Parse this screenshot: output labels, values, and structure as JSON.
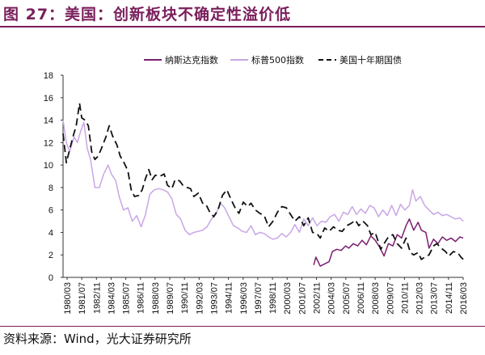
{
  "figure": {
    "title": "图 27：美国：创新板块不确定性溢价低",
    "source": "资料来源：Wind，光大证券研究所"
  },
  "chart_data": {
    "type": "line",
    "x_tick_labels": [
      "1980/03",
      "1981/07",
      "1982/11",
      "1984/03",
      "1985/07",
      "1986/11",
      "1988/03",
      "1989/07",
      "1990/11",
      "1992/03",
      "1993/07",
      "1994/11",
      "1996/03",
      "1997/07",
      "1998/11",
      "2000/03",
      "2001/07",
      "2002/11",
      "2004/03",
      "2005/07",
      "2006/11",
      "2008/03",
      "2009/07",
      "2010/11",
      "2012/03",
      "2013/07",
      "2014/11",
      "2016/03"
    ],
    "ylim": [
      0,
      18
    ],
    "yticks": [
      0,
      2,
      4,
      6,
      8,
      10,
      12,
      14,
      16,
      18
    ],
    "legend_position": "top",
    "grid": false,
    "series": [
      {
        "name": "纳斯达克指数",
        "color": "#7a1f6e",
        "style": "solid",
        "points": [
          [
            2002.8,
            1.1
          ],
          [
            2003.0,
            1.8
          ],
          [
            2003.4,
            1.0
          ],
          [
            2003.8,
            1.2
          ],
          [
            2004.2,
            1.4
          ],
          [
            2004.5,
            2.3
          ],
          [
            2004.9,
            2.5
          ],
          [
            2005.3,
            2.4
          ],
          [
            2005.7,
            2.8
          ],
          [
            2006.0,
            2.6
          ],
          [
            2006.4,
            3.0
          ],
          [
            2006.8,
            2.8
          ],
          [
            2007.2,
            3.3
          ],
          [
            2007.6,
            2.9
          ],
          [
            2008.0,
            3.7
          ],
          [
            2008.4,
            3.3
          ],
          [
            2008.8,
            2.7
          ],
          [
            2009.2,
            1.9
          ],
          [
            2009.6,
            3.0
          ],
          [
            2010.0,
            2.8
          ],
          [
            2010.4,
            3.8
          ],
          [
            2010.8,
            3.5
          ],
          [
            2011.2,
            4.6
          ],
          [
            2011.5,
            5.2
          ],
          [
            2011.9,
            4.2
          ],
          [
            2012.3,
            4.9
          ],
          [
            2012.6,
            4.2
          ],
          [
            2013.0,
            4.0
          ],
          [
            2013.3,
            2.6
          ],
          [
            2013.7,
            3.4
          ],
          [
            2014.1,
            3.0
          ],
          [
            2014.5,
            3.6
          ],
          [
            2014.9,
            3.3
          ],
          [
            2015.3,
            3.5
          ],
          [
            2015.7,
            3.2
          ],
          [
            2016.1,
            3.6
          ],
          [
            2016.4,
            3.5
          ]
        ]
      },
      {
        "name": "标普500指数",
        "color": "#c9a6e6",
        "style": "solid",
        "points": [
          [
            1980.0,
            14.0
          ],
          [
            1980.3,
            12.0
          ],
          [
            1980.6,
            11.2
          ],
          [
            1981.0,
            12.5
          ],
          [
            1981.3,
            12.0
          ],
          [
            1981.6,
            13.0
          ],
          [
            1981.9,
            13.8
          ],
          [
            1982.2,
            11.5
          ],
          [
            1982.5,
            10.5
          ],
          [
            1982.9,
            8.0
          ],
          [
            1983.3,
            8.0
          ],
          [
            1983.7,
            9.2
          ],
          [
            1984.1,
            10.0
          ],
          [
            1984.4,
            9.2
          ],
          [
            1984.8,
            8.6
          ],
          [
            1985.1,
            7.2
          ],
          [
            1985.5,
            6.0
          ],
          [
            1985.9,
            6.2
          ],
          [
            1986.3,
            5.0
          ],
          [
            1986.7,
            5.5
          ],
          [
            1987.1,
            4.5
          ],
          [
            1987.5,
            5.6
          ],
          [
            1987.9,
            7.4
          ],
          [
            1988.3,
            7.8
          ],
          [
            1988.7,
            7.9
          ],
          [
            1989.1,
            7.8
          ],
          [
            1989.5,
            7.6
          ],
          [
            1989.9,
            7.0
          ],
          [
            1990.3,
            5.6
          ],
          [
            1990.7,
            5.2
          ],
          [
            1991.1,
            4.2
          ],
          [
            1991.5,
            3.8
          ],
          [
            1991.9,
            4.0
          ],
          [
            1992.3,
            4.1
          ],
          [
            1992.7,
            4.2
          ],
          [
            1993.1,
            4.5
          ],
          [
            1993.5,
            5.2
          ],
          [
            1993.9,
            5.6
          ],
          [
            1994.3,
            6.6
          ],
          [
            1994.7,
            6.2
          ],
          [
            1995.1,
            5.4
          ],
          [
            1995.5,
            4.6
          ],
          [
            1995.9,
            4.4
          ],
          [
            1996.3,
            4.1
          ],
          [
            1996.7,
            4.0
          ],
          [
            1997.1,
            4.6
          ],
          [
            1997.5,
            3.8
          ],
          [
            1997.9,
            4.0
          ],
          [
            1998.3,
            3.9
          ],
          [
            1998.7,
            3.6
          ],
          [
            1999.1,
            3.4
          ],
          [
            1999.5,
            3.5
          ],
          [
            1999.9,
            3.9
          ],
          [
            2000.3,
            3.6
          ],
          [
            2000.7,
            4.0
          ],
          [
            2001.1,
            4.7
          ],
          [
            2001.5,
            4.0
          ],
          [
            2001.9,
            5.2
          ],
          [
            2002.3,
            4.6
          ],
          [
            2002.7,
            5.3
          ],
          [
            2003.1,
            4.6
          ],
          [
            2003.5,
            5.0
          ],
          [
            2003.9,
            4.9
          ],
          [
            2004.3,
            5.4
          ],
          [
            2004.7,
            5.6
          ],
          [
            2005.1,
            5.0
          ],
          [
            2005.5,
            5.8
          ],
          [
            2005.9,
            5.6
          ],
          [
            2006.3,
            6.3
          ],
          [
            2006.7,
            5.6
          ],
          [
            2007.1,
            6.1
          ],
          [
            2007.5,
            5.7
          ],
          [
            2007.9,
            6.4
          ],
          [
            2008.3,
            6.2
          ],
          [
            2008.7,
            5.4
          ],
          [
            2009.1,
            6.0
          ],
          [
            2009.5,
            5.5
          ],
          [
            2009.9,
            6.4
          ],
          [
            2010.3,
            5.5
          ],
          [
            2010.7,
            6.5
          ],
          [
            2011.1,
            6.0
          ],
          [
            2011.5,
            6.4
          ],
          [
            2011.8,
            7.8
          ],
          [
            2012.1,
            6.8
          ],
          [
            2012.5,
            7.2
          ],
          [
            2012.9,
            6.4
          ],
          [
            2013.3,
            6.0
          ],
          [
            2013.7,
            5.6
          ],
          [
            2014.1,
            5.8
          ],
          [
            2014.5,
            5.5
          ],
          [
            2014.9,
            5.6
          ],
          [
            2015.3,
            5.4
          ],
          [
            2015.7,
            5.2
          ],
          [
            2016.1,
            5.3
          ],
          [
            2016.4,
            5.0
          ]
        ]
      },
      {
        "name": "美国十年期国债",
        "color": "#111111",
        "style": "dashed",
        "points": [
          [
            1980.0,
            12.8
          ],
          [
            1980.3,
            10.2
          ],
          [
            1980.6,
            11.4
          ],
          [
            1980.9,
            12.5
          ],
          [
            1981.2,
            13.5
          ],
          [
            1981.5,
            15.5
          ],
          [
            1981.7,
            14.2
          ],
          [
            1982.0,
            14.0
          ],
          [
            1982.3,
            13.5
          ],
          [
            1982.6,
            11.2
          ],
          [
            1982.9,
            10.5
          ],
          [
            1983.2,
            10.8
          ],
          [
            1983.5,
            11.5
          ],
          [
            1983.9,
            12.5
          ],
          [
            1984.2,
            13.5
          ],
          [
            1984.5,
            12.6
          ],
          [
            1984.9,
            11.8
          ],
          [
            1985.2,
            10.8
          ],
          [
            1985.5,
            10.3
          ],
          [
            1985.9,
            9.5
          ],
          [
            1986.2,
            7.8
          ],
          [
            1986.5,
            7.2
          ],
          [
            1986.9,
            7.3
          ],
          [
            1987.2,
            7.8
          ],
          [
            1987.5,
            8.8
          ],
          [
            1987.8,
            9.6
          ],
          [
            1988.1,
            8.7
          ],
          [
            1988.4,
            9.1
          ],
          [
            1988.8,
            9.0
          ],
          [
            1989.2,
            9.2
          ],
          [
            1989.5,
            8.2
          ],
          [
            1989.9,
            7.9
          ],
          [
            1990.2,
            8.7
          ],
          [
            1990.6,
            8.6
          ],
          [
            1990.9,
            8.2
          ],
          [
            1991.3,
            8.0
          ],
          [
            1991.6,
            7.9
          ],
          [
            1991.9,
            7.2
          ],
          [
            1992.3,
            7.5
          ],
          [
            1992.7,
            6.6
          ],
          [
            1993.0,
            6.5
          ],
          [
            1993.3,
            5.9
          ],
          [
            1993.7,
            5.4
          ],
          [
            1994.1,
            6.0
          ],
          [
            1994.5,
            7.3
          ],
          [
            1994.9,
            7.8
          ],
          [
            1995.3,
            6.9
          ],
          [
            1995.7,
            6.1
          ],
          [
            1996.0,
            5.7
          ],
          [
            1996.4,
            6.7
          ],
          [
            1996.8,
            6.3
          ],
          [
            1997.1,
            6.6
          ],
          [
            1997.5,
            6.0
          ],
          [
            1997.9,
            5.7
          ],
          [
            1998.3,
            5.5
          ],
          [
            1998.7,
            4.5
          ],
          [
            1999.1,
            5.0
          ],
          [
            1999.5,
            5.8
          ],
          [
            1999.9,
            6.3
          ],
          [
            2000.3,
            6.2
          ],
          [
            2000.7,
            5.6
          ],
          [
            2001.1,
            5.0
          ],
          [
            2001.5,
            5.4
          ],
          [
            2001.9,
            4.6
          ],
          [
            2002.3,
            5.3
          ],
          [
            2002.7,
            4.0
          ],
          [
            2003.1,
            3.9
          ],
          [
            2003.4,
            3.5
          ],
          [
            2003.8,
            4.4
          ],
          [
            2004.2,
            4.1
          ],
          [
            2004.6,
            4.5
          ],
          [
            2005.0,
            4.2
          ],
          [
            2005.4,
            4.1
          ],
          [
            2005.8,
            4.6
          ],
          [
            2006.2,
            4.8
          ],
          [
            2006.6,
            5.1
          ],
          [
            2006.9,
            4.6
          ],
          [
            2007.3,
            5.0
          ],
          [
            2007.7,
            4.6
          ],
          [
            2008.0,
            3.8
          ],
          [
            2008.4,
            4.0
          ],
          [
            2008.9,
            2.5
          ],
          [
            2009.2,
            3.0
          ],
          [
            2009.6,
            3.6
          ],
          [
            2010.0,
            3.8
          ],
          [
            2010.4,
            3.0
          ],
          [
            2010.8,
            2.6
          ],
          [
            2011.2,
            3.5
          ],
          [
            2011.6,
            2.2
          ],
          [
            2011.9,
            2.0
          ],
          [
            2012.3,
            2.2
          ],
          [
            2012.6,
            1.6
          ],
          [
            2012.9,
            1.8
          ],
          [
            2013.3,
            2.0
          ],
          [
            2013.7,
            2.8
          ],
          [
            2014.0,
            3.0
          ],
          [
            2014.4,
            2.6
          ],
          [
            2014.8,
            2.3
          ],
          [
            2015.1,
            1.9
          ],
          [
            2015.5,
            2.3
          ],
          [
            2015.9,
            2.2
          ],
          [
            2016.2,
            1.8
          ],
          [
            2016.4,
            1.6
          ]
        ]
      }
    ]
  }
}
